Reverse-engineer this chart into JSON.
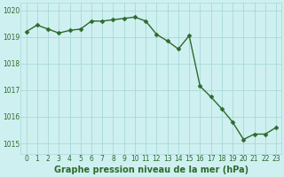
{
  "x": [
    0,
    1,
    2,
    3,
    4,
    5,
    6,
    7,
    8,
    9,
    10,
    11,
    12,
    13,
    14,
    15,
    16,
    17,
    18,
    19,
    20,
    21,
    22,
    23
  ],
  "y": [
    1019.2,
    1019.45,
    1019.3,
    1019.15,
    1019.25,
    1019.3,
    1019.6,
    1019.6,
    1019.65,
    1019.7,
    1019.75,
    1019.6,
    1019.1,
    1018.85,
    1018.55,
    1019.05,
    1017.15,
    1016.75,
    1016.3,
    1015.8,
    1015.15,
    1015.35,
    1015.35,
    1015.6
  ],
  "line_color": "#2d6a2d",
  "marker": "D",
  "marker_size": 2.5,
  "line_width": 1.0,
  "bg_color": "#cff0f0",
  "grid_color": "#a8d8d8",
  "xlabel": "Graphe pression niveau de la mer (hPa)",
  "xlabel_fontsize": 7,
  "xlabel_color": "#2d6a2d",
  "tick_color": "#2d6a2d",
  "tick_fontsize": 5.5,
  "ylim": [
    1014.6,
    1020.3
  ],
  "xlim": [
    -0.5,
    23.5
  ],
  "yticks": [
    1015,
    1016,
    1017,
    1018,
    1019,
    1020
  ],
  "xticks": [
    0,
    1,
    2,
    3,
    4,
    5,
    6,
    7,
    8,
    9,
    10,
    11,
    12,
    13,
    14,
    15,
    16,
    17,
    18,
    19,
    20,
    21,
    22,
    23
  ],
  "fig_width": 3.2,
  "fig_height": 2.0,
  "dpi": 100
}
